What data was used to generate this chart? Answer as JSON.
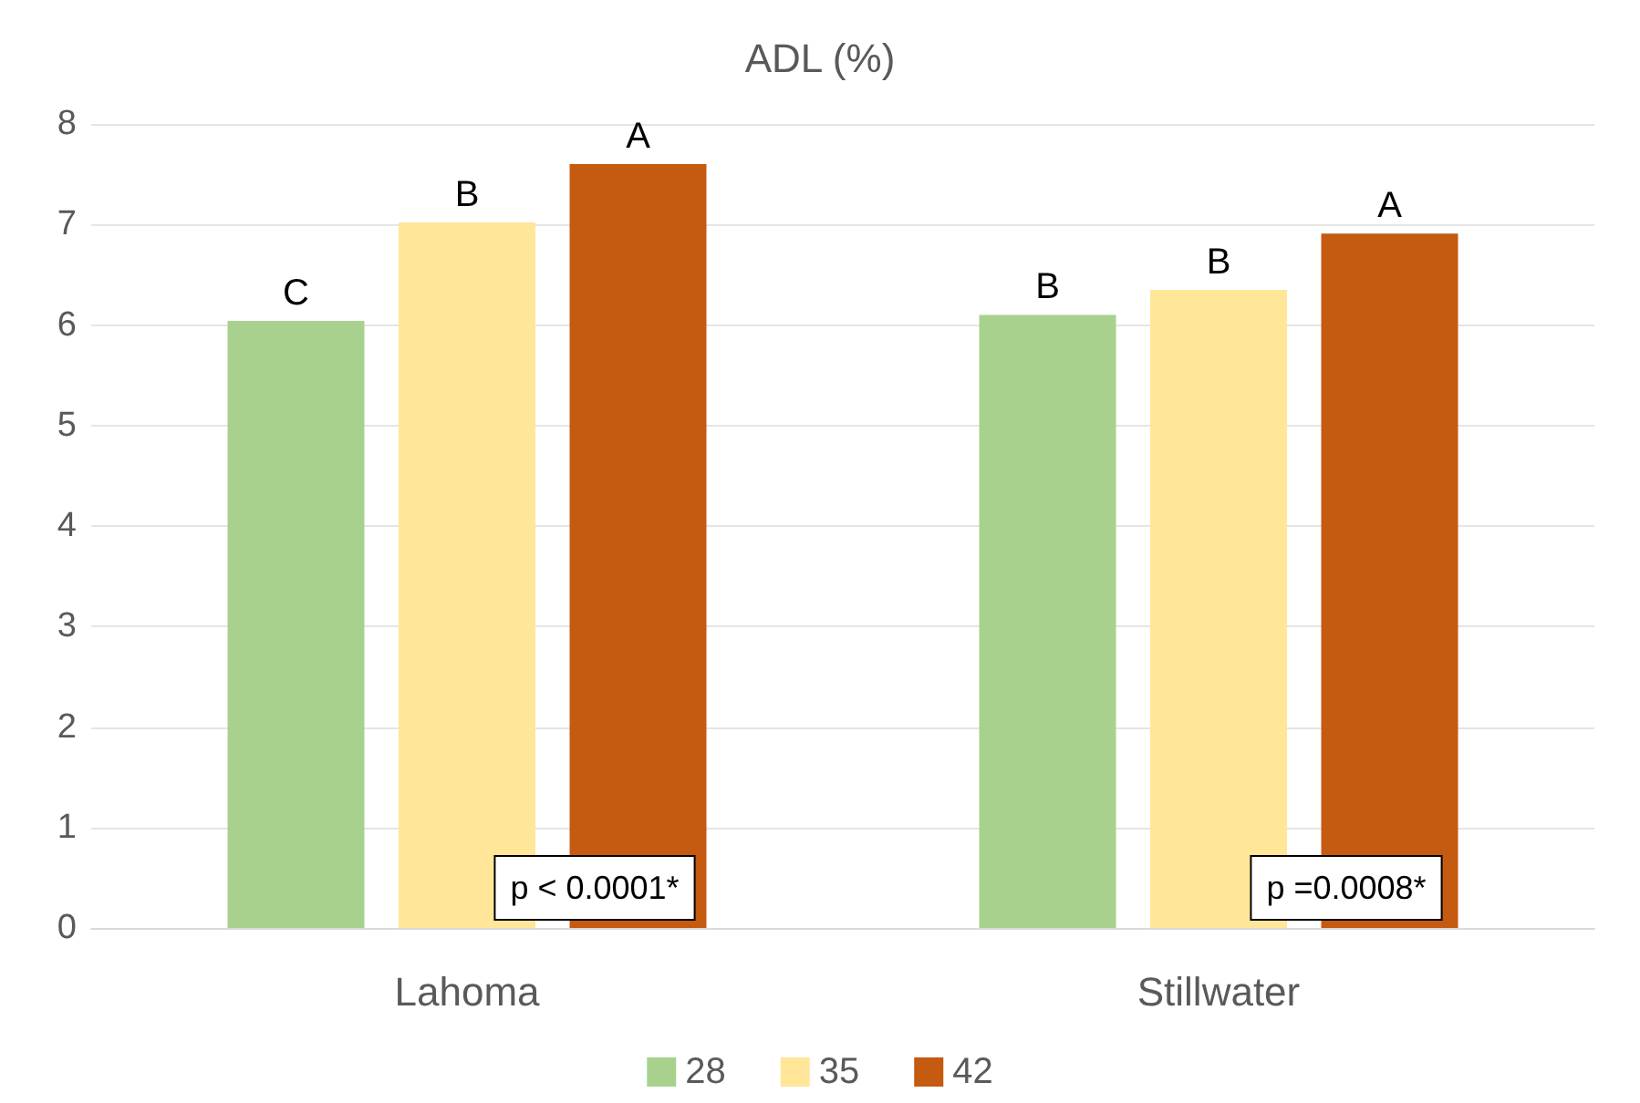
{
  "chart_data": {
    "type": "bar",
    "title": "ADL (%)",
    "categories": [
      "Lahoma",
      "Stillwater"
    ],
    "series": [
      {
        "name": "28",
        "color": "#a9d18e",
        "values": [
          6.04,
          6.1
        ],
        "value_labels": [
          "C",
          "B"
        ]
      },
      {
        "name": "35",
        "color": "#ffe699",
        "values": [
          7.02,
          6.35
        ],
        "value_labels": [
          "B",
          "B"
        ]
      },
      {
        "name": "42",
        "color": "#c55a11",
        "values": [
          7.6,
          6.91
        ],
        "value_labels": [
          "A",
          "A"
        ]
      }
    ],
    "ylim": [
      0,
      8
    ],
    "yticks": [
      0,
      1,
      2,
      3,
      4,
      5,
      6,
      7,
      8
    ],
    "grid": "y",
    "legend": "bottom",
    "annotations": [
      "p < 0.0001*",
      "p =0.0008*"
    ]
  }
}
